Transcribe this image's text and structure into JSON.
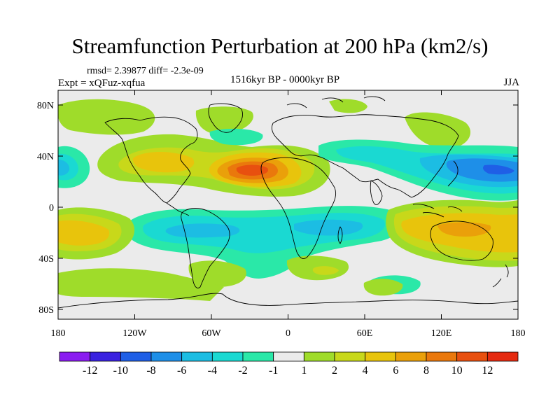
{
  "header": {
    "title": "Streamfunction Perturbation at 200 hPa (km2/s)",
    "stats": "rmsd= 2.39877 diff= -2.3e-09",
    "experiment": "Expt = xQFuz-xqfua",
    "time_range": "1516kyr BP - 0000kyr BP",
    "season": "JJA"
  },
  "axes": {
    "lat_labels": [
      "80N",
      "40N",
      "0",
      "40S",
      "80S"
    ],
    "lon_labels": [
      "180",
      "120W",
      "60W",
      "0",
      "60E",
      "120E",
      "180"
    ]
  },
  "colorbar": {
    "labels": [
      "-12",
      "-10",
      "-8",
      "-6",
      "-4",
      "-2",
      "-1",
      "1",
      "2",
      "4",
      "6",
      "8",
      "10",
      "12"
    ],
    "colors": [
      "#8a1cf0",
      "#3a22e0",
      "#1f5fe6",
      "#1e8fe8",
      "#1cbde3",
      "#1ad9d2",
      "#2ae8a8",
      "#ebebeb",
      "#9fdc2a",
      "#c8d81a",
      "#e8c40c",
      "#eaa00a",
      "#ea780c",
      "#e8500f",
      "#e52a10"
    ]
  },
  "map": {
    "background": "#ebebeb",
    "features": [
      {
        "name": "anomaly-high-arctic-asia",
        "level": "2"
      },
      {
        "name": "anomaly-high-north-atlantic",
        "level": "4"
      },
      {
        "name": "anomaly-high-sahara-peak",
        "level": "10"
      },
      {
        "name": "anomaly-low-east-asia-pacific",
        "level": "-8"
      },
      {
        "name": "anomaly-low-southern-tropics",
        "level": "-4"
      },
      {
        "name": "anomaly-high-australia",
        "level": "6"
      },
      {
        "name": "anomaly-high-south-pacific",
        "level": "6"
      }
    ]
  }
}
